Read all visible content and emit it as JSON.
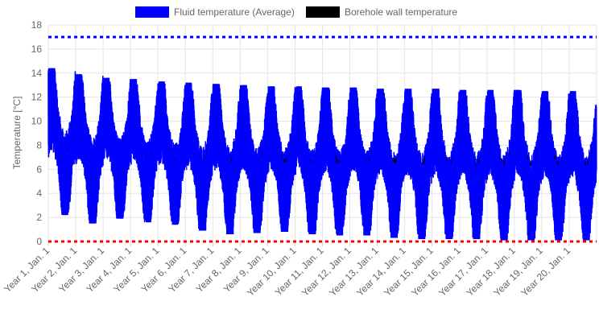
{
  "chart_data": {
    "type": "line",
    "title": "",
    "xlabel": "",
    "ylabel": "Temperature [°C]",
    "ylim": [
      0,
      18
    ],
    "y_ticks": [
      "0",
      "2",
      "4",
      "6",
      "8",
      "10",
      "12",
      "14",
      "16",
      "18"
    ],
    "x_ticks": [
      "Year 1, Jan. 1",
      "Year 2, Jan. 1",
      "Year 3, Jan. 1",
      "Year 4, Jan. 1",
      "Year 5, Jan. 1",
      "Year 6, Jan. 1",
      "Year 7, Jan. 1",
      "Year 8, Jan. 1",
      "Year 9, Jan. 1",
      "Year 10, Jan. 1",
      "Year 11, Jan. 1",
      "Year 12, Jan. 1",
      "Year 13, Jan. 1",
      "Year 14, Jan. 1",
      "Year 15, Jan. 1",
      "Year 16, Jan. 1",
      "Year 17, Jan. 1",
      "Year 18, Jan. 1",
      "Year 19, Jan. 1",
      "Year 20, Jan. 1"
    ],
    "grid": true,
    "legend_position": "top",
    "series": [
      {
        "name": "Fluid temperature (Average)",
        "color": "#0000ff",
        "peaks_by_year": [
          14.4,
          13.9,
          13.6,
          13.5,
          13.3,
          13.2,
          13.1,
          13.0,
          12.9,
          12.9,
          12.8,
          12.8,
          12.7,
          12.7,
          12.7,
          12.6,
          12.6,
          12.6,
          12.5,
          12.5
        ],
        "troughs_by_year": [
          2.2,
          1.5,
          1.9,
          1.6,
          1.4,
          0.9,
          0.6,
          0.7,
          0.8,
          0.6,
          0.5,
          0.5,
          0.3,
          0.2,
          0.2,
          0.2,
          0.1,
          0.1,
          0.1,
          0.1
        ]
      },
      {
        "name": "Borehole wall temperature",
        "color": "#000000",
        "peaks_by_year": [
          11.0,
          10.5,
          10.0,
          9.8,
          9.6,
          9.5,
          9.4,
          9.3,
          9.2,
          9.2,
          9.1,
          9.1,
          9.0,
          9.0,
          9.0,
          9.0,
          8.9,
          8.9,
          8.9,
          8.9
        ],
        "troughs_by_year": [
          7.6,
          7.2,
          7.0,
          6.9,
          6.8,
          6.8,
          6.7,
          6.7,
          6.7,
          6.6,
          6.6,
          6.6,
          6.6,
          6.5,
          6.5,
          6.5,
          6.5,
          6.5,
          6.5,
          6.5
        ]
      },
      {
        "name": "",
        "color": "#0000ff",
        "style": "dotted",
        "y": 17
      },
      {
        "name": "",
        "color": "#ff0000",
        "style": "dotted",
        "y": 0
      }
    ]
  }
}
